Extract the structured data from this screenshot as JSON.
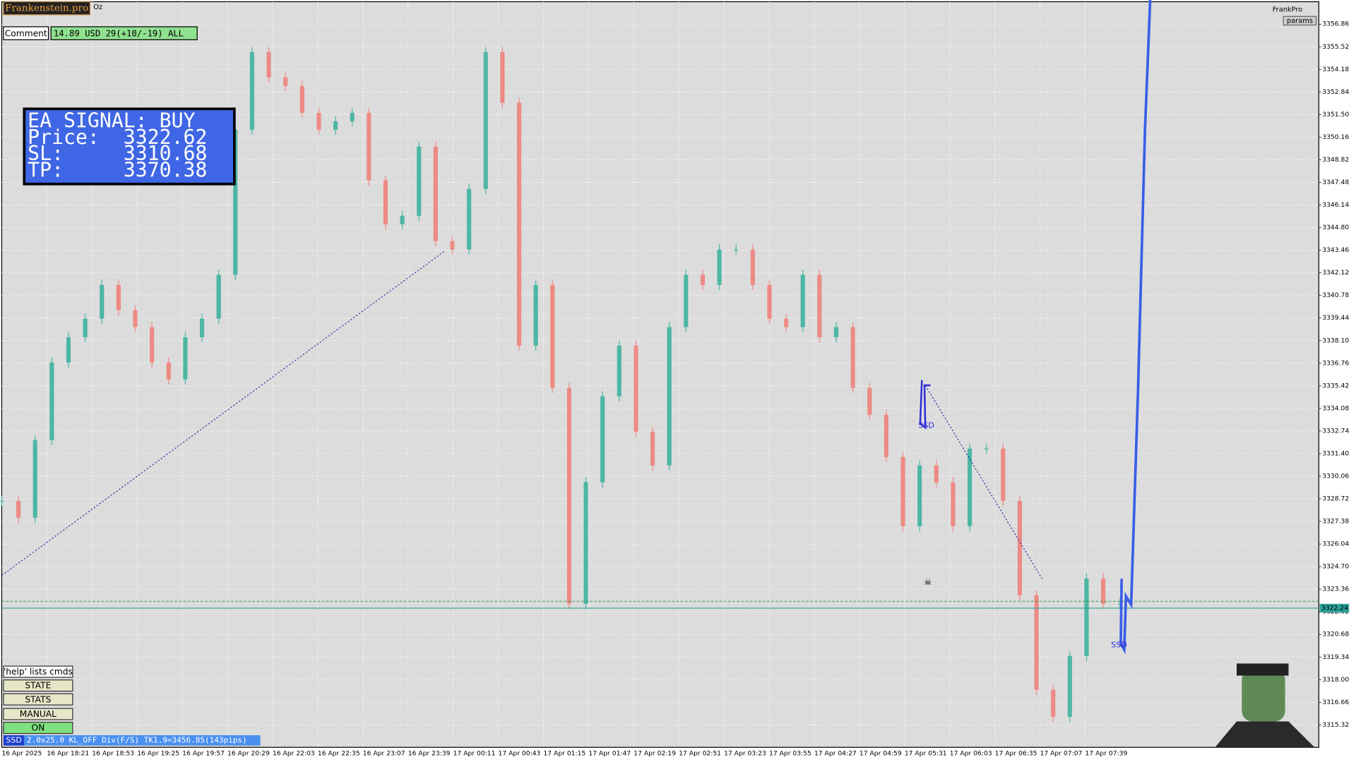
{
  "chart_data": {
    "type": "candlestick",
    "closes": [
      3328.6,
      3327.6,
      3332.2,
      3336.8,
      3338.3,
      3339.4,
      3341.4,
      3339.9,
      3338.9,
      3336.8,
      3335.8,
      3338.3,
      3339.4,
      3342,
      3350.6,
      3355.2,
      3353.7,
      3353.2,
      3351.6,
      3350.6,
      3351.1,
      3351.6,
      3347.6,
      3345,
      3345.5,
      3349.6,
      3344,
      3343.5,
      3347.1,
      3355.2,
      3352.2,
      3337.8,
      3341.4,
      3335.3,
      3322.5,
      3329.7,
      3334.8,
      3337.8,
      3332.7,
      3330.7,
      3338.9,
      3342,
      3341.4,
      3343.5,
      3343.5,
      3341.4,
      3339.4,
      3338.9,
      3342,
      3338.3,
      3338.9,
      3335.3,
      3333.7,
      3331.2,
      3327.1,
      3330.7,
      3329.7,
      3327.1,
      3331.7,
      3331.7,
      3328.6,
      3323,
      3317.4,
      3315.8,
      3319.4,
      3324,
      3322.5,
      3322.5
    ],
    "up_color": "#4db6a4",
    "down_color": "#ee8a84",
    "ylim": [
      3313.99,
      3358.19
    ],
    "yticks": [
      3356.86,
      3355.52,
      3354.18,
      3352.84,
      {
        "value": 3351.5,
        "label": "3351.50"
      },
      3350.16,
      3348.82,
      3347.48,
      3346.14,
      {
        "value": 3344.8,
        "label": "3344.80"
      },
      3343.46,
      3342.12,
      3340.78,
      3339.44,
      {
        "value": 3338.1,
        "label": "3338.10"
      },
      3336.76,
      3335.42,
      3334.08,
      3332.74,
      {
        "value": 3331.4,
        "label": "3331.40"
      },
      3330.06,
      3328.72,
      3327.38,
      3326.04,
      {
        "value": 3324.7,
        "label": "3324.70"
      },
      3323.36,
      3322.02,
      3320.68,
      3319.34,
      {
        "value": 3318,
        "label": "3318.00"
      },
      3316.66,
      3315.32
    ],
    "grid": true,
    "xlabels": [
      "16 Apr 2025",
      "16 Apr 18:21",
      "16 Apr 18:53",
      "16 Apr 19:25",
      "16 Apr 19:57",
      "16 Apr 20:29",
      "16 Apr 22:03",
      "16 Apr 22:35",
      "16 Apr 23:07",
      "16 Apr 23:39",
      "17 Apr 00:11",
      "17 Apr 00:43",
      "17 Apr 01:15",
      "17 Apr 01:47",
      "17 Apr 02:19",
      "17 Apr 02:51",
      "17 Apr 03:23",
      "17 Apr 03:55",
      "17 Apr 04:27",
      "17 Apr 04:59",
      "17 Apr 05:31",
      "17 Apr 06:03",
      "17 Apr 06:35",
      "17 Apr 07:07",
      "17 Apr 07:39"
    ],
    "current_price": {
      "value": 3322.24,
      "label": "3322.24",
      "color": "#2aa198"
    }
  },
  "ui": {
    "logo": "Frankenstein.pro",
    "symbol": "Oz",
    "comment": "Comment",
    "account": "14.89 USD 29(+10/-19) ALL",
    "signal": [
      "EA SIGNAL: BUY",
      "Price:  3322.62",
      "SL:     3310.68",
      "TP:     3370.38"
    ],
    "brand": "FrankPro",
    "params": "params",
    "buttons": [
      "'help' lists cmds",
      "STATE",
      "STATS",
      "MANUAL",
      "ON"
    ],
    "status_tag": "SSD",
    "status": "2.0x25.0 KL_OFF Div(F/S) TK1.9=3456.85(143pips)",
    "marker": "SSD"
  }
}
